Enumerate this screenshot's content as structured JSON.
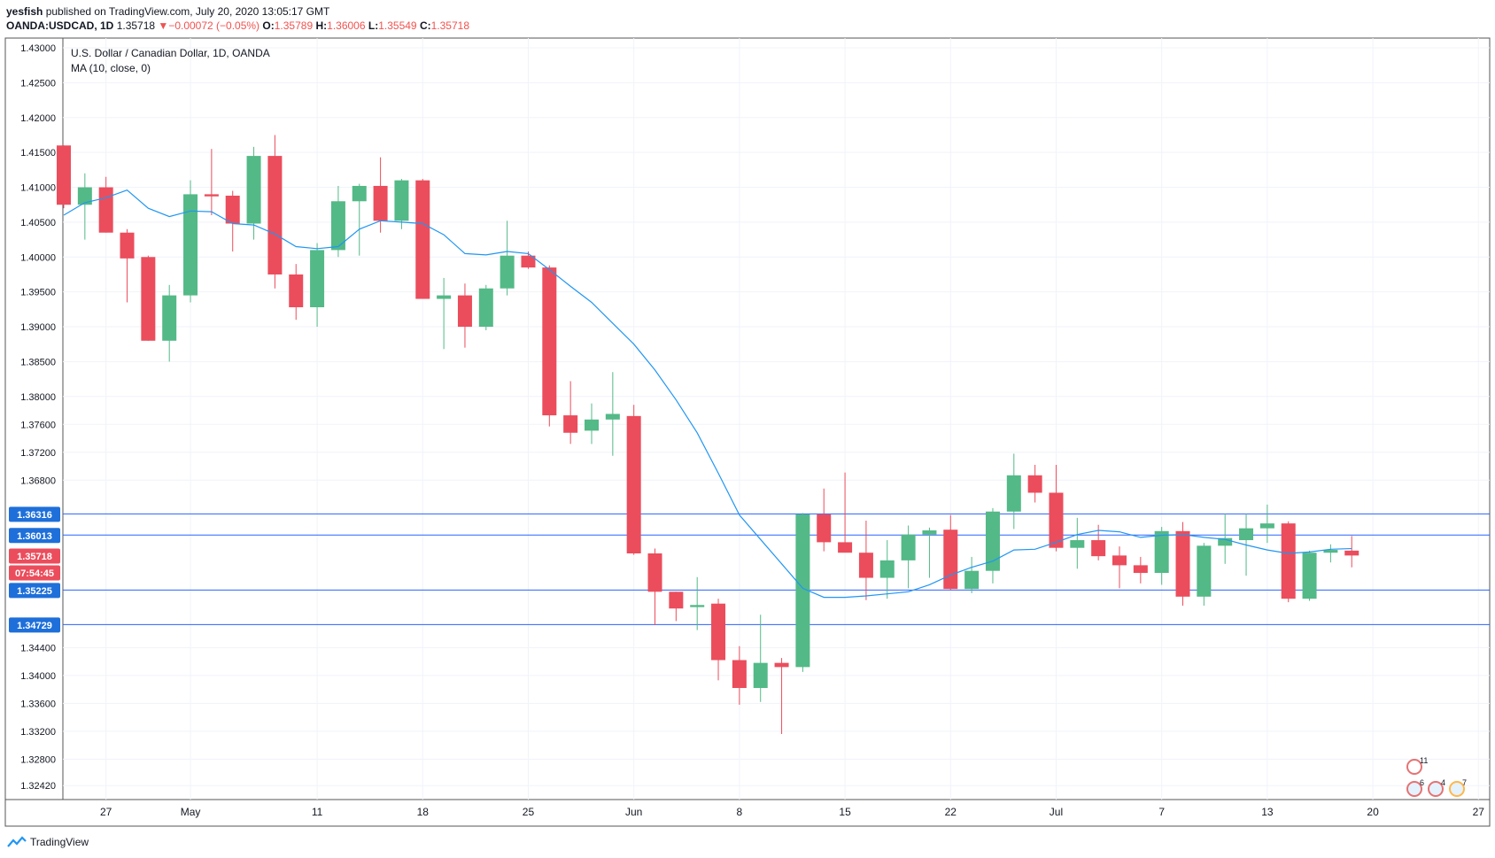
{
  "header": {
    "publisher": "yesfish",
    "published_text": "published on TradingView.com, July 20, 2020 13:05:17 GMT",
    "symbol": "OANDA:USDCAD, 1D",
    "last": "1.35718",
    "change": "−0.00072 (−0.05%)",
    "o_label": "O:",
    "o_value": "1.35789",
    "h_label": "H:",
    "h_value": "1.36006",
    "l_label": "L:",
    "l_value": "1.35549",
    "c_label": "C:",
    "c_value": "1.35718"
  },
  "legend": {
    "title": "U.S. Dollar / Canadian Dollar, 1D, OANDA",
    "indicator": "MA (10, close, 0)"
  },
  "footer": {
    "brand": "TradingView"
  },
  "badges": {
    "events_top": "11",
    "events_a": "6",
    "events_b": "4",
    "events_c": "7"
  },
  "colors": {
    "up": "#53b987",
    "down": "#eb4d5c",
    "ma": "#2196f3",
    "level": "#2962ff",
    "grid": "#f0f3fa"
  },
  "chart_data": {
    "type": "candlestick",
    "title": "U.S. Dollar / Canadian Dollar, 1D, OANDA",
    "ylim": [
      1.3222,
      1.4314
    ],
    "y_ticks": [
      "1.43000",
      "1.42500",
      "1.42000",
      "1.41500",
      "1.41000",
      "1.40500",
      "1.40000",
      "1.39500",
      "1.39000",
      "1.38500",
      "1.38000",
      "1.37600",
      "1.37200",
      "1.36800",
      "1.34400",
      "1.34000",
      "1.33600",
      "1.33200",
      "1.32800",
      "1.32420"
    ],
    "x_labels": [
      {
        "t": 2,
        "label": "27"
      },
      {
        "t": 6,
        "label": "May"
      },
      {
        "t": 12,
        "label": "11"
      },
      {
        "t": 17,
        "label": "18"
      },
      {
        "t": 22,
        "label": "25"
      },
      {
        "t": 27,
        "label": "Jun"
      },
      {
        "t": 32,
        "label": "8"
      },
      {
        "t": 37,
        "label": "15"
      },
      {
        "t": 42,
        "label": "22"
      },
      {
        "t": 47,
        "label": "Jul"
      },
      {
        "t": 52,
        "label": "7"
      },
      {
        "t": 57,
        "label": "13"
      },
      {
        "t": 62,
        "label": "20"
      },
      {
        "t": 67,
        "label": "27"
      }
    ],
    "candles": [
      {
        "t": 0,
        "o": 1.416,
        "h": 1.416,
        "l": 1.407,
        "c": 1.4075
      },
      {
        "t": 1,
        "o": 1.4075,
        "h": 1.412,
        "l": 1.4025,
        "c": 1.41
      },
      {
        "t": 2,
        "o": 1.41,
        "h": 1.4115,
        "l": 1.4035,
        "c": 1.4035
      },
      {
        "t": 3,
        "o": 1.4035,
        "h": 1.404,
        "l": 1.3935,
        "c": 1.3998
      },
      {
        "t": 4,
        "o": 1.4,
        "h": 1.4002,
        "l": 1.388,
        "c": 1.388
      },
      {
        "t": 5,
        "o": 1.388,
        "h": 1.396,
        "l": 1.385,
        "c": 1.3945
      },
      {
        "t": 6,
        "o": 1.3945,
        "h": 1.411,
        "l": 1.3935,
        "c": 1.409
      },
      {
        "t": 7,
        "o": 1.409,
        "h": 1.4155,
        "l": 1.406,
        "c": 1.4087
      },
      {
        "t": 8,
        "o": 1.4088,
        "h": 1.4095,
        "l": 1.4008,
        "c": 1.4048
      },
      {
        "t": 9,
        "o": 1.4048,
        "h": 1.4158,
        "l": 1.4025,
        "c": 1.4145
      },
      {
        "t": 10,
        "o": 1.4145,
        "h": 1.4175,
        "l": 1.3955,
        "c": 1.3975
      },
      {
        "t": 11,
        "o": 1.3975,
        "h": 1.399,
        "l": 1.391,
        "c": 1.3928
      },
      {
        "t": 12,
        "o": 1.3928,
        "h": 1.402,
        "l": 1.39,
        "c": 1.401
      },
      {
        "t": 13,
        "o": 1.401,
        "h": 1.4102,
        "l": 1.4,
        "c": 1.408
      },
      {
        "t": 14,
        "o": 1.408,
        "h": 1.4105,
        "l": 1.4002,
        "c": 1.4102
      },
      {
        "t": 15,
        "o": 1.4102,
        "h": 1.4143,
        "l": 1.4035,
        "c": 1.4052
      },
      {
        "t": 16,
        "o": 1.4052,
        "h": 1.4112,
        "l": 1.404,
        "c": 1.411
      },
      {
        "t": 17,
        "o": 1.411,
        "h": 1.4112,
        "l": 1.394,
        "c": 1.394
      },
      {
        "t": 18,
        "o": 1.394,
        "h": 1.397,
        "l": 1.3868,
        "c": 1.3945
      },
      {
        "t": 19,
        "o": 1.3945,
        "h": 1.3962,
        "l": 1.387,
        "c": 1.39
      },
      {
        "t": 20,
        "o": 1.39,
        "h": 1.396,
        "l": 1.3895,
        "c": 1.3955
      },
      {
        "t": 21,
        "o": 1.3955,
        "h": 1.4052,
        "l": 1.3945,
        "c": 1.4002
      },
      {
        "t": 22,
        "o": 1.4002,
        "h": 1.4008,
        "l": 1.3983,
        "c": 1.3985
      },
      {
        "t": 23,
        "o": 1.3985,
        "h": 1.3988,
        "l": 1.3757,
        "c": 1.3773
      },
      {
        "t": 24,
        "o": 1.3773,
        "h": 1.3822,
        "l": 1.3732,
        "c": 1.3748
      },
      {
        "t": 25,
        "o": 1.3751,
        "h": 1.379,
        "l": 1.3732,
        "c": 1.3767
      },
      {
        "t": 26,
        "o": 1.3767,
        "h": 1.3835,
        "l": 1.3715,
        "c": 1.3775
      },
      {
        "t": 27,
        "o": 1.3772,
        "h": 1.3788,
        "l": 1.3573,
        "c": 1.3575
      },
      {
        "t": 28,
        "o": 1.3575,
        "h": 1.3582,
        "l": 1.3472,
        "c": 1.352
      },
      {
        "t": 29,
        "o": 1.352,
        "h": 1.352,
        "l": 1.3478,
        "c": 1.3496
      },
      {
        "t": 30,
        "o": 1.3498,
        "h": 1.3541,
        "l": 1.3465,
        "c": 1.3501
      },
      {
        "t": 31,
        "o": 1.3503,
        "h": 1.351,
        "l": 1.3393,
        "c": 1.3422
      },
      {
        "t": 32,
        "o": 1.3422,
        "h": 1.3442,
        "l": 1.3358,
        "c": 1.3382
      },
      {
        "t": 33,
        "o": 1.3382,
        "h": 1.3487,
        "l": 1.3362,
        "c": 1.3418
      },
      {
        "t": 34,
        "o": 1.3418,
        "h": 1.3425,
        "l": 1.3316,
        "c": 1.3412
      },
      {
        "t": 35,
        "o": 1.3412,
        "h": 1.3633,
        "l": 1.3405,
        "c": 1.3631
      },
      {
        "t": 36,
        "o": 1.3631,
        "h": 1.3668,
        "l": 1.3578,
        "c": 1.3591
      },
      {
        "t": 37,
        "o": 1.3591,
        "h": 1.3691,
        "l": 1.3583,
        "c": 1.3576
      },
      {
        "t": 38,
        "o": 1.3576,
        "h": 1.3622,
        "l": 1.3508,
        "c": 1.354
      },
      {
        "t": 39,
        "o": 1.354,
        "h": 1.3594,
        "l": 1.351,
        "c": 1.3565
      },
      {
        "t": 40,
        "o": 1.3565,
        "h": 1.3615,
        "l": 1.3525,
        "c": 1.3602
      },
      {
        "t": 41,
        "o": 1.3602,
        "h": 1.3612,
        "l": 1.354,
        "c": 1.3608
      },
      {
        "t": 42,
        "o": 1.3609,
        "h": 1.363,
        "l": 1.3523,
        "c": 1.3524
      },
      {
        "t": 43,
        "o": 1.3524,
        "h": 1.357,
        "l": 1.3518,
        "c": 1.355
      },
      {
        "t": 44,
        "o": 1.355,
        "h": 1.364,
        "l": 1.3532,
        "c": 1.3635
      },
      {
        "t": 45,
        "o": 1.3635,
        "h": 1.3718,
        "l": 1.361,
        "c": 1.3687
      },
      {
        "t": 46,
        "o": 1.3687,
        "h": 1.3702,
        "l": 1.3648,
        "c": 1.3662
      },
      {
        "t": 47,
        "o": 1.3662,
        "h": 1.3702,
        "l": 1.3578,
        "c": 1.3583
      },
      {
        "t": 48,
        "o": 1.3583,
        "h": 1.3626,
        "l": 1.3553,
        "c": 1.3594
      },
      {
        "t": 49,
        "o": 1.3594,
        "h": 1.3616,
        "l": 1.3565,
        "c": 1.3571
      },
      {
        "t": 50,
        "o": 1.3572,
        "h": 1.3585,
        "l": 1.3525,
        "c": 1.3558
      },
      {
        "t": 51,
        "o": 1.3558,
        "h": 1.357,
        "l": 1.3532,
        "c": 1.3547
      },
      {
        "t": 52,
        "o": 1.3547,
        "h": 1.3613,
        "l": 1.353,
        "c": 1.3607
      },
      {
        "t": 53,
        "o": 1.3607,
        "h": 1.362,
        "l": 1.35,
        "c": 1.3513
      },
      {
        "t": 54,
        "o": 1.3513,
        "h": 1.359,
        "l": 1.35,
        "c": 1.3586
      },
      {
        "t": 55,
        "o": 1.3586,
        "h": 1.3632,
        "l": 1.356,
        "c": 1.3597
      },
      {
        "t": 56,
        "o": 1.3594,
        "h": 1.3632,
        "l": 1.3543,
        "c": 1.3611
      },
      {
        "t": 57,
        "o": 1.3611,
        "h": 1.3645,
        "l": 1.359,
        "c": 1.3618
      },
      {
        "t": 58,
        "o": 1.3618,
        "h": 1.3621,
        "l": 1.3505,
        "c": 1.351
      },
      {
        "t": 59,
        "o": 1.351,
        "h": 1.3579,
        "l": 1.3507,
        "c": 1.3576
      },
      {
        "t": 60,
        "o": 1.3576,
        "h": 1.3588,
        "l": 1.3562,
        "c": 1.358
      },
      {
        "t": 61,
        "o": 1.3579,
        "h": 1.36,
        "l": 1.3555,
        "c": 1.3572
      }
    ],
    "ma": [
      [
        0,
        1.406
      ],
      [
        1,
        1.4078
      ],
      [
        2,
        1.4085
      ],
      [
        3,
        1.4096
      ],
      [
        4,
        1.407
      ],
      [
        5,
        1.4058
      ],
      [
        6,
        1.4066
      ],
      [
        7,
        1.4065
      ],
      [
        8,
        1.4048
      ],
      [
        9,
        1.4046
      ],
      [
        10,
        1.4033
      ],
      [
        11,
        1.4015
      ],
      [
        12,
        1.4012
      ],
      [
        13,
        1.4015
      ],
      [
        14,
        1.404
      ],
      [
        15,
        1.4052
      ],
      [
        16,
        1.405
      ],
      [
        17,
        1.4048
      ],
      [
        18,
        1.4032
      ],
      [
        19,
        1.4005
      ],
      [
        20,
        1.4003
      ],
      [
        21,
        1.4008
      ],
      [
        22,
        1.4005
      ],
      [
        23,
        1.3982
      ],
      [
        24,
        1.3958
      ],
      [
        25,
        1.3935
      ],
      [
        26,
        1.3905
      ],
      [
        27,
        1.3875
      ],
      [
        28,
        1.3838
      ],
      [
        29,
        1.3795
      ],
      [
        30,
        1.3748
      ],
      [
        31,
        1.369
      ],
      [
        32,
        1.363
      ],
      [
        33,
        1.3595
      ],
      [
        34,
        1.356
      ],
      [
        35,
        1.3525
      ],
      [
        36,
        1.3512
      ],
      [
        37,
        1.3512
      ],
      [
        38,
        1.3514
      ],
      [
        39,
        1.3517
      ],
      [
        40,
        1.352
      ],
      [
        41,
        1.353
      ],
      [
        42,
        1.3544
      ],
      [
        43,
        1.3555
      ],
      [
        44,
        1.3564
      ],
      [
        45,
        1.358
      ],
      [
        46,
        1.3581
      ],
      [
        47,
        1.3591
      ],
      [
        48,
        1.3602
      ],
      [
        49,
        1.3608
      ],
      [
        50,
        1.3606
      ],
      [
        51,
        1.3598
      ],
      [
        52,
        1.3601
      ],
      [
        53,
        1.3602
      ],
      [
        54,
        1.3598
      ],
      [
        55,
        1.3595
      ],
      [
        56,
        1.3587
      ],
      [
        57,
        1.358
      ],
      [
        58,
        1.3575
      ],
      [
        59,
        1.3577
      ],
      [
        60,
        1.3581
      ],
      [
        61,
        1.3582
      ]
    ],
    "levels": [
      {
        "value": 1.36316,
        "label": "1.36316"
      },
      {
        "value": 1.36013,
        "label": "1.36013"
      },
      {
        "value": 1.35225,
        "label": "1.35225"
      },
      {
        "value": 1.34729,
        "label": "1.34729"
      }
    ],
    "last_price": {
      "value": 1.35718,
      "label": "1.35718",
      "countdown": "07:54:45"
    }
  }
}
